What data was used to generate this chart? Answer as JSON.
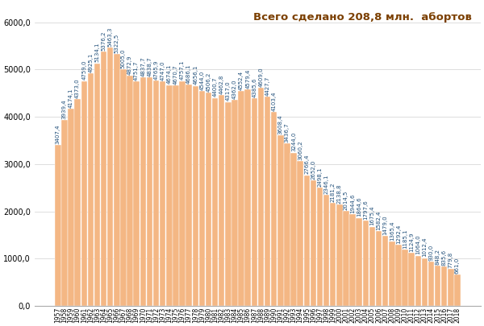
{
  "years": [
    1957,
    1958,
    1959,
    1960,
    1961,
    1962,
    1963,
    1964,
    1965,
    1966,
    1967,
    1968,
    1969,
    1970,
    1971,
    1972,
    1973,
    1974,
    1975,
    1976,
    1977,
    1978,
    1979,
    1980,
    1981,
    1982,
    1983,
    1984,
    1985,
    1986,
    1987,
    1988,
    1989,
    1990,
    1991,
    1992,
    1993,
    1994,
    1995,
    1996,
    1997,
    1998,
    1999,
    2000,
    2001,
    2002,
    2003,
    2004,
    2005,
    2006,
    2007,
    2008,
    2009,
    2010,
    2011,
    2012,
    2013,
    2014,
    2015,
    2016,
    2017,
    2018
  ],
  "values": [
    3407.4,
    3939.4,
    4174.1,
    4373.0,
    4759.0,
    4925.1,
    5134.1,
    5376.2,
    5463.3,
    5322.5,
    5005.0,
    4872.9,
    4751.7,
    4837.7,
    4838.7,
    4765.9,
    4747.0,
    4674.1,
    4670.7,
    4757.1,
    4686.1,
    4656.1,
    4544.0,
    4506.2,
    4400.7,
    4462.8,
    4317.0,
    4362.0,
    4552.4,
    4579.4,
    4385.6,
    4609.0,
    4427.7,
    4103.4,
    3608.4,
    3436.7,
    3244.0,
    3060.2,
    2766.4,
    2652.0,
    2498.1,
    2346.1,
    2181.2,
    2138.8,
    2014.5,
    1944.6,
    1864.6,
    1797.6,
    1675.4,
    1582.4,
    1479.0,
    1365.4,
    1292.4,
    1185.1,
    1124.9,
    1064.0,
    1012.4,
    930.0,
    848.2,
    835.6,
    779.8,
    661.0
  ],
  "bar_color": "#f4b784",
  "bar_edge_color": "#ffffff",
  "title": "Всего сделано 208,8 млн.  абортов",
  "ylim": [
    0,
    6400
  ],
  "ytick_values": [
    0,
    1000,
    2000,
    3000,
    4000,
    5000,
    6000
  ],
  "annotation_fontsize": 5.0,
  "title_fontsize": 9.5,
  "title_color": "#7b3f00",
  "annotation_color": "#1f4e79",
  "background_color": "#ffffff",
  "bar_linewidth": 0.3,
  "xtick_fontsize": 5.5,
  "ytick_fontsize": 7.0
}
